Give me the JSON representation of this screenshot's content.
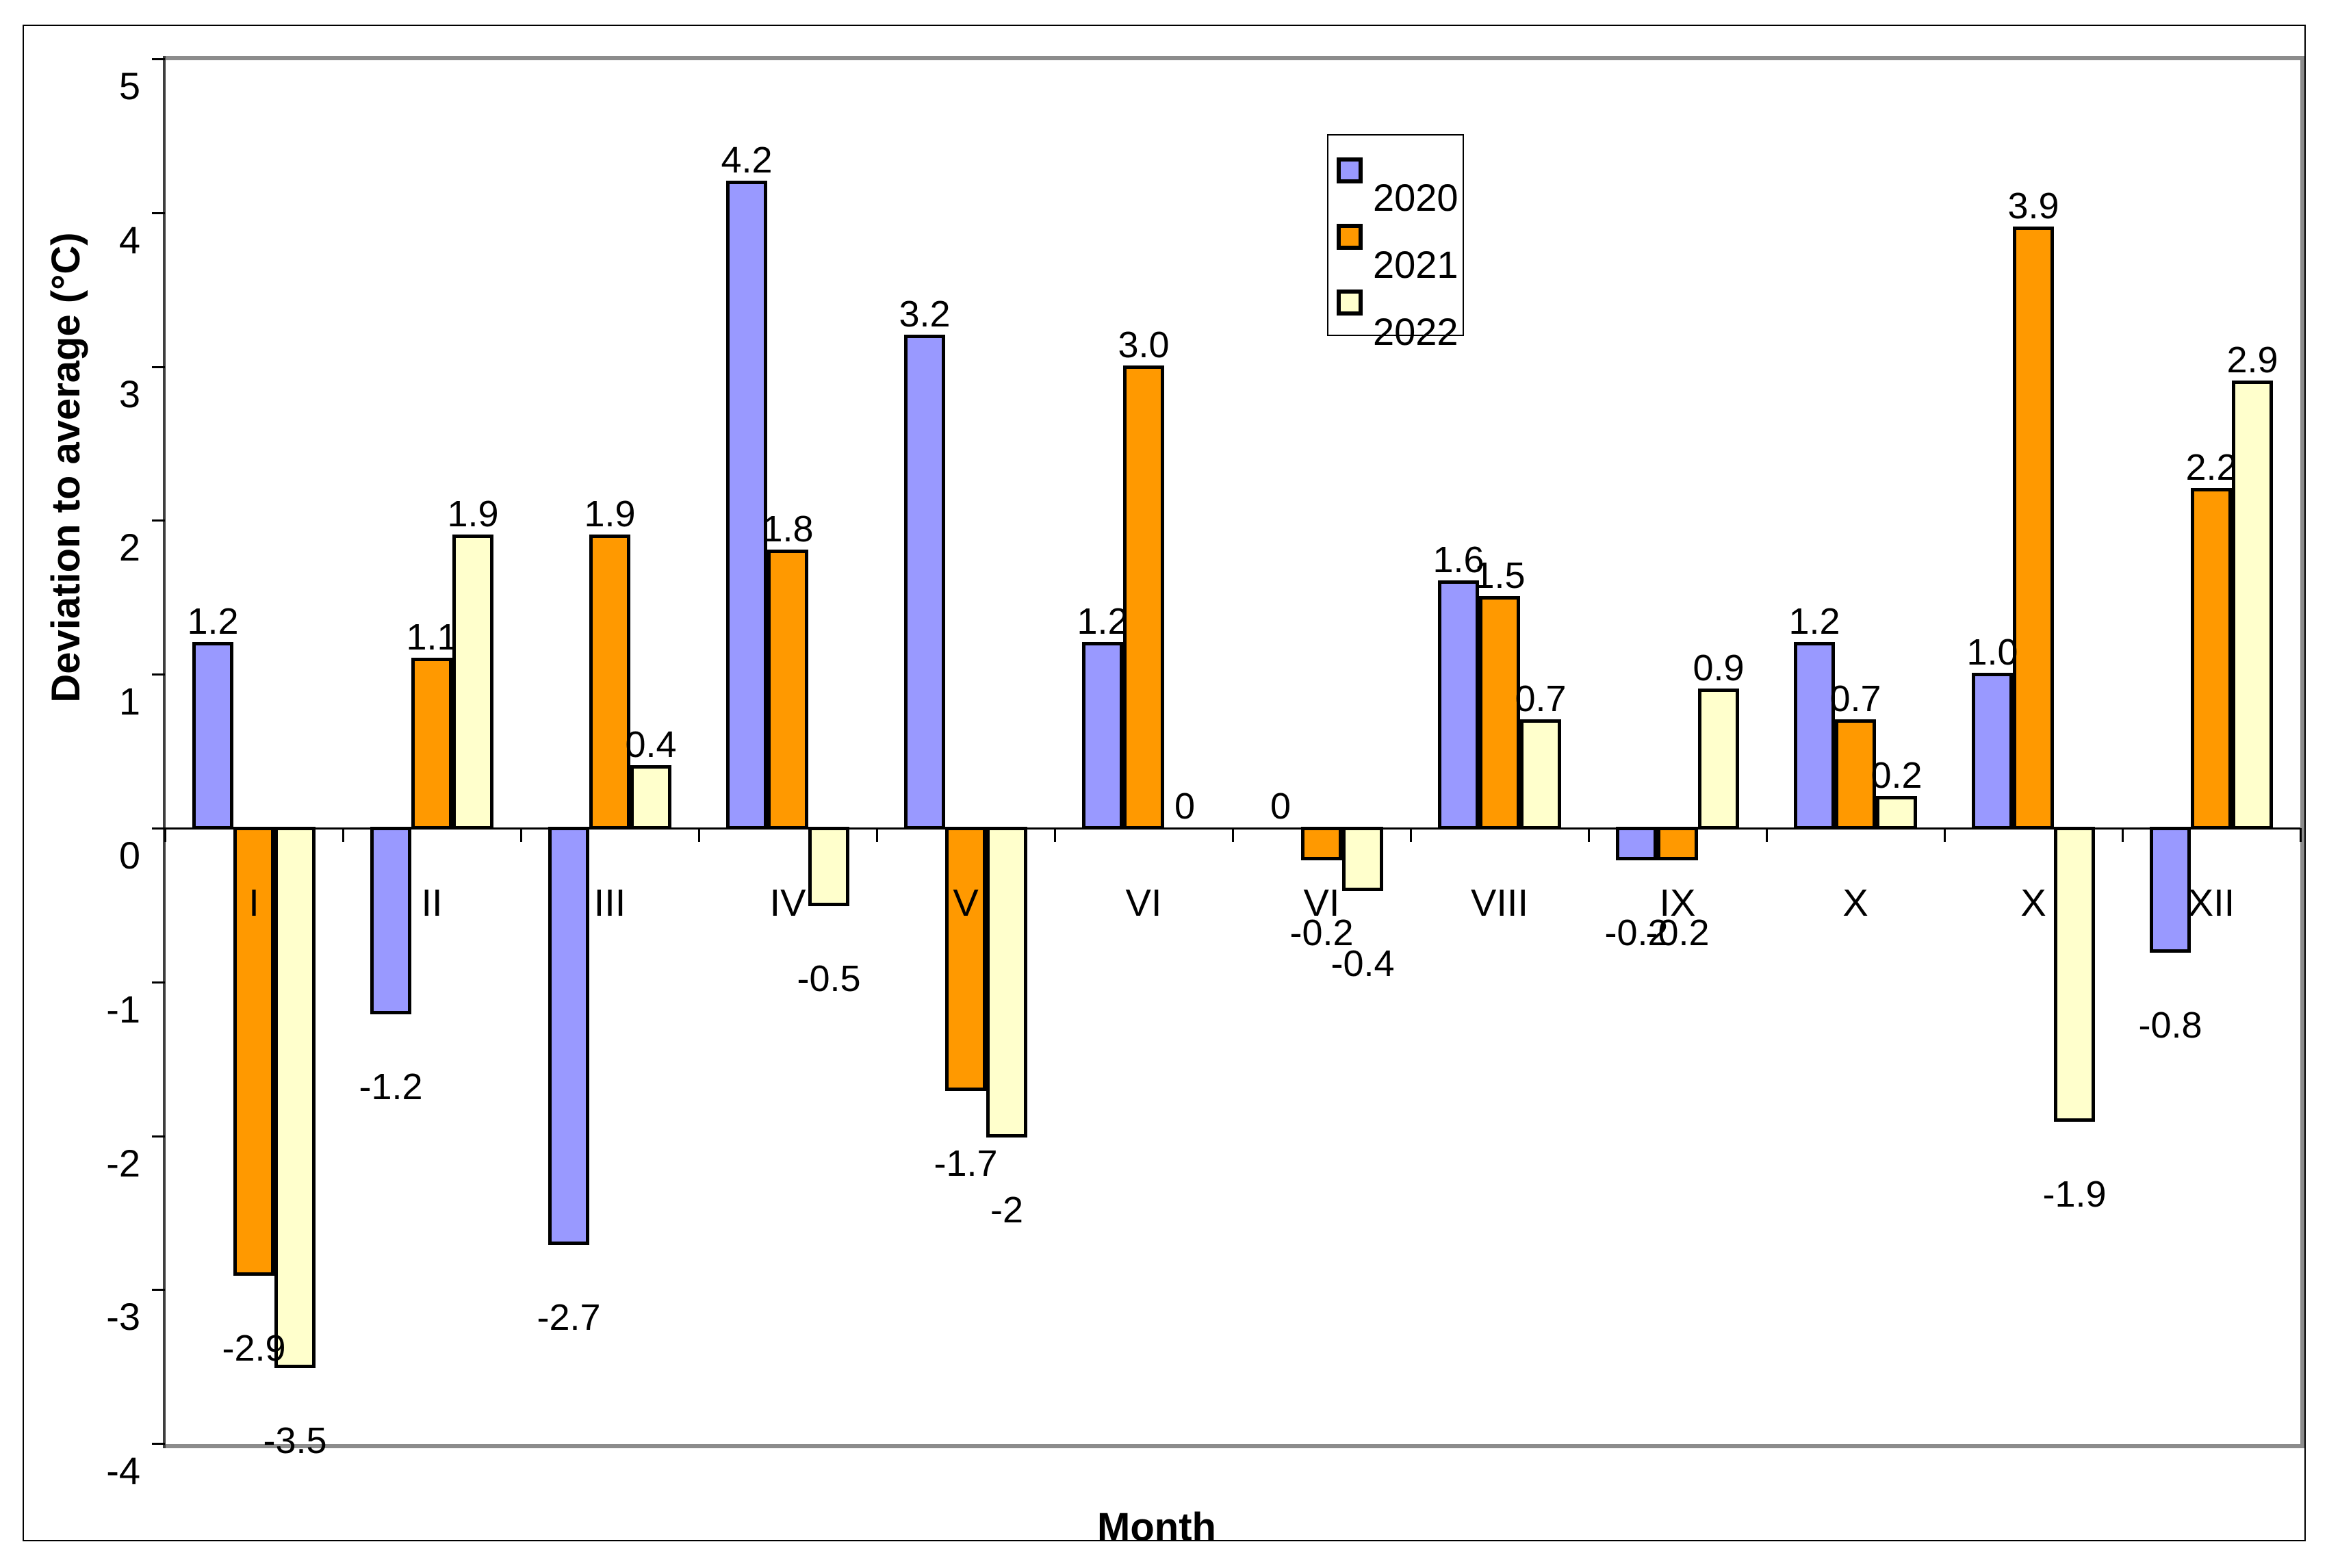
{
  "chart_data": {
    "type": "bar",
    "title": "",
    "xlabel": "Month",
    "ylabel": "Deviation to average (°C)",
    "ylim": [
      -4,
      5
    ],
    "ytick_values": [
      5,
      4,
      3,
      2,
      1,
      0,
      -1,
      -2,
      -3,
      -4
    ],
    "ytick_labels": [
      "5",
      "4",
      "3",
      "2",
      "1",
      "0",
      "-1",
      "-2",
      "-3",
      "-4"
    ],
    "categories_displayed": [
      "I",
      "II",
      "III",
      "IV",
      "V",
      "VI",
      "VI",
      "VIII",
      "IX",
      "X",
      "X",
      "XII"
    ],
    "grid": false,
    "legend_position": "inside-top-center",
    "bar_border_color": "#000000",
    "plot_border_color": "#8c8c8c",
    "axis_color": "#3f3f3f",
    "background_color": "#ffffff",
    "series": [
      {
        "name": "2020",
        "color": "#9999FF",
        "values": [
          1.2,
          -1.2,
          -2.7,
          4.2,
          3.2,
          1.2,
          0,
          1.6,
          -0.2,
          1.2,
          1.0,
          -0.8
        ],
        "labels": [
          "1.2",
          "-1.2",
          "-2.7",
          "4.2",
          "3.2",
          "1.2",
          "0",
          "1.6",
          "-0.2",
          "1.2",
          "1.0",
          "-0.8"
        ]
      },
      {
        "name": "2021",
        "color": "#FF9900",
        "values": [
          -2.9,
          1.1,
          1.9,
          1.8,
          -1.7,
          3.0,
          -0.2,
          1.5,
          -0.2,
          0.7,
          3.9,
          2.2
        ],
        "labels": [
          "-2.9",
          "1.1",
          "1.9",
          "1.8",
          "-1.7",
          "3.0",
          "-0.2",
          "1.5",
          "-0.2",
          "0.7",
          "3.9",
          "2.2"
        ]
      },
      {
        "name": "2022",
        "color": "#FFFFCC",
        "values": [
          -3.5,
          1.9,
          0.4,
          -0.5,
          -2,
          0,
          -0.4,
          0.7,
          0.9,
          0.2,
          -1.9,
          2.9
        ],
        "labels": [
          "-3.5",
          "1.9",
          "0.4",
          "-0.5",
          "-2",
          "0",
          "-0.4",
          "0.7",
          "0.9",
          "0.2",
          "-1.9",
          "2.9"
        ]
      }
    ]
  }
}
